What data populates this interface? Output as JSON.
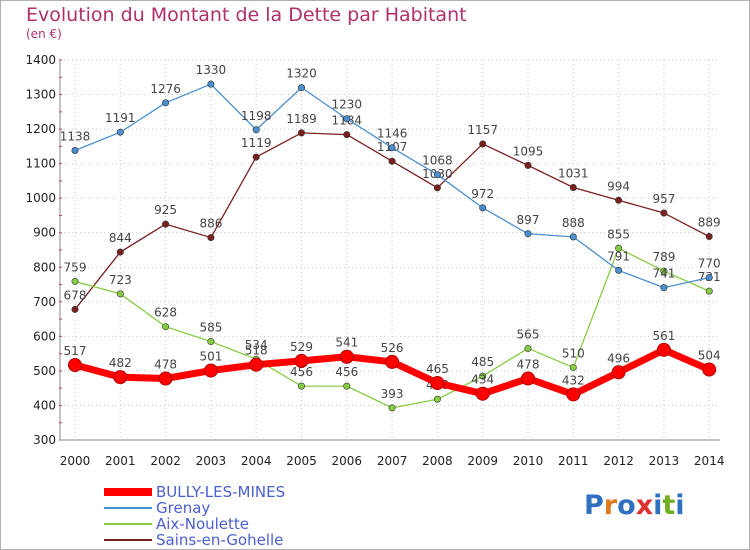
{
  "title": "Evolution du Montant de la Dette par Habitant",
  "subtitle": "(en €)",
  "logo_text": "Proxiti",
  "chart_data": {
    "type": "line",
    "x": [
      "2000",
      "2001",
      "2002",
      "2003",
      "2004",
      "2005",
      "2006",
      "2007",
      "2008",
      "2009",
      "2010",
      "2011",
      "2012",
      "2013",
      "2014"
    ],
    "ylim": [
      300,
      1400
    ],
    "yticks": [
      300,
      400,
      500,
      600,
      700,
      800,
      900,
      1000,
      1100,
      1200,
      1300,
      1400
    ],
    "grid": true,
    "legend_position": "bottom-left",
    "series": [
      {
        "name": "BULLY-LES-MINES",
        "color": "#ff0000",
        "values": [
          517,
          482,
          478,
          501,
          518,
          529,
          541,
          526,
          465,
          434,
          478,
          432,
          496,
          561,
          504
        ]
      },
      {
        "name": "Grenay",
        "color": "#4a8fd0",
        "values": [
          1138,
          1191,
          1276,
          1330,
          1198,
          1320,
          1230,
          1146,
          1068,
          972,
          897,
          888,
          791,
          741,
          770
        ]
      },
      {
        "name": "Aix-Noulette",
        "color": "#88cc44",
        "values": [
          759,
          723,
          628,
          585,
          534,
          456,
          456,
          393,
          418,
          485,
          565,
          510,
          855,
          789,
          731
        ]
      },
      {
        "name": "Sains-en-Gohelle",
        "color": "#7a1f1f",
        "values": [
          678,
          844,
          925,
          886,
          1119,
          1189,
          1184,
          1107,
          1030,
          1157,
          1095,
          1031,
          994,
          957,
          889
        ]
      }
    ]
  }
}
